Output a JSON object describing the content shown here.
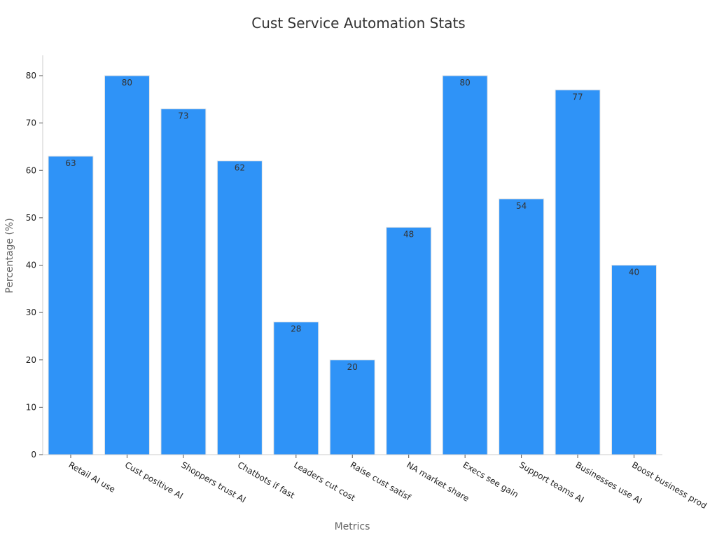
{
  "chart_data": {
    "type": "bar",
    "title": "Cust Service Automation Stats",
    "xlabel": "Metrics",
    "ylabel": "Percentage (%)",
    "categories": [
      "Retail AI use",
      "Cust positive AI",
      "Shoppers trust AI",
      "Chatbots if fast",
      "Leaders cut cost",
      "Raise cust satisf",
      "NA market share",
      "Execs see gain",
      "Support teams AI",
      "Businesses use AI",
      "Boost business prod"
    ],
    "values": [
      63,
      80,
      73,
      62,
      28,
      20,
      48,
      80,
      54,
      77,
      40
    ],
    "ylim": [
      0,
      84
    ],
    "yticks": [
      0,
      10,
      20,
      30,
      40,
      50,
      60,
      70,
      80
    ],
    "grid": false,
    "legend": "none",
    "bar_color": "#2f93f7",
    "data_labels": true
  }
}
